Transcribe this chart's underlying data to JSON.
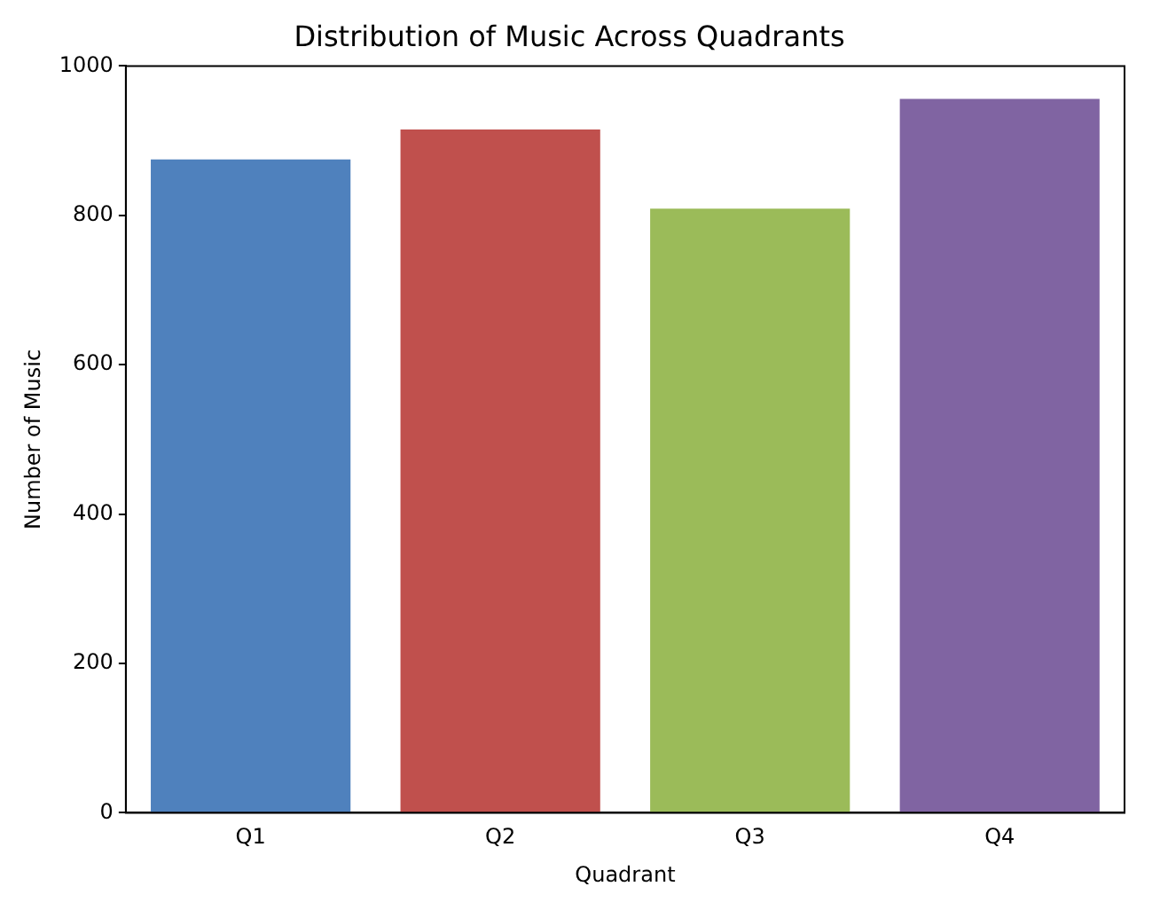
{
  "chart_data": {
    "type": "bar",
    "title": "Distribution of Music Across Quadrants",
    "xlabel": "Quadrant",
    "ylabel": "Number of Music",
    "categories": [
      "Q1",
      "Q2",
      "Q3",
      "Q4"
    ],
    "values": [
      875,
      915,
      809,
      956
    ],
    "colors": [
      "#4f81bd",
      "#c0504d",
      "#9bbb59",
      "#8064a2"
    ],
    "ylim": [
      0,
      1000
    ],
    "yticks": [
      0,
      200,
      400,
      600,
      800,
      1000
    ],
    "grid": false,
    "legend": false
  }
}
